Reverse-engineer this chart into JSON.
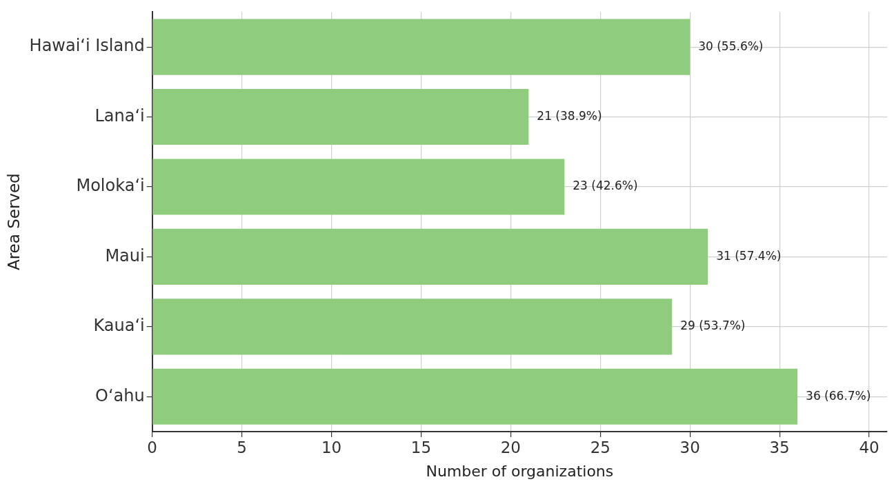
{
  "chart_data": {
    "type": "bar",
    "orientation": "horizontal",
    "xlabel": "Number of organizations",
    "ylabel": "Area Served",
    "categories": [
      "Hawaiʻi Island",
      "Lanaʻi",
      "Molokaʻi",
      "Maui",
      "Kauaʻi",
      "Oʻahu"
    ],
    "values": [
      30,
      21,
      23,
      31,
      29,
      36
    ],
    "color": "#90cc7e",
    "value_labels": [
      "30 (55.6%)",
      "21 (38.9%)",
      "23 (42.6%)",
      "31 (57.4%)",
      "29 (53.7%)",
      "36 (66.7%)"
    ],
    "xlim": [
      0,
      41
    ],
    "xticks": [
      0,
      5,
      10,
      15,
      20,
      25,
      30,
      35,
      40
    ],
    "grid": true,
    "legend": false
  }
}
